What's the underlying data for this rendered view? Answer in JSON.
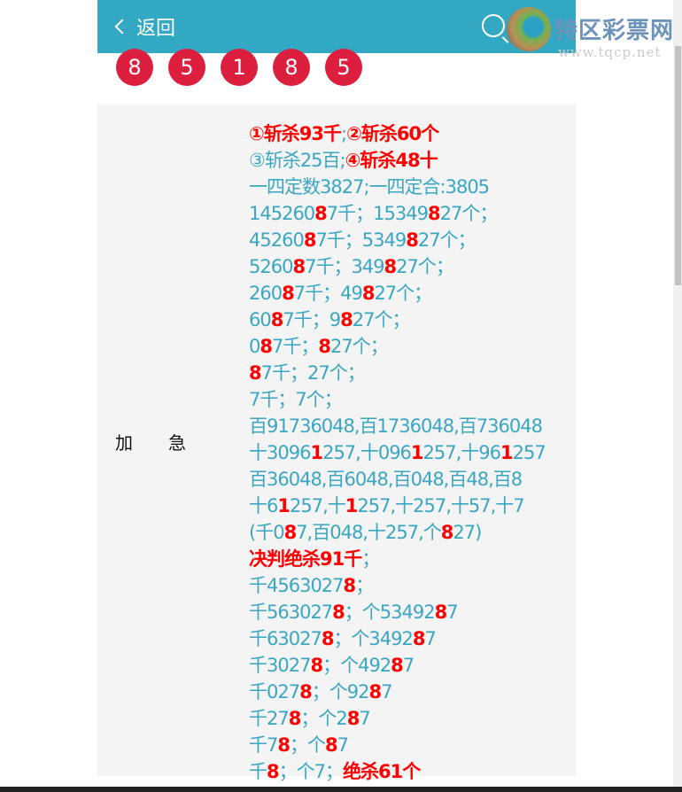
{
  "header": {
    "back_label": "返回",
    "logo_text": "特区彩票网",
    "logo_url": "www.tqcp.net",
    "bg_color": "#33a8c2"
  },
  "balls": [
    "8",
    "5",
    "1",
    "8",
    "5"
  ],
  "ball_color": "#dc1f3f",
  "row_label": "加　　急",
  "lines": [
    [
      [
        "①斩杀93千",
        1
      ],
      [
        ";",
        0
      ],
      [
        "②斩杀60个",
        1
      ]
    ],
    [
      [
        "③斩杀25百;",
        0
      ],
      [
        "④斩杀48十",
        1
      ]
    ],
    [
      [
        "一四定数3827;一四定合:3805",
        0
      ]
    ],
    [
      [
        "145260",
        0
      ],
      [
        "8",
        1
      ],
      [
        "7千；15349",
        0
      ],
      [
        "8",
        1
      ],
      [
        "27个；",
        0
      ]
    ],
    [
      [
        "45260",
        0
      ],
      [
        "8",
        1
      ],
      [
        "7千；5349",
        0
      ],
      [
        "8",
        1
      ],
      [
        "27个；",
        0
      ]
    ],
    [
      [
        "5260",
        0
      ],
      [
        "8",
        1
      ],
      [
        "7千；349",
        0
      ],
      [
        "8",
        1
      ],
      [
        "27个；",
        0
      ]
    ],
    [
      [
        "260",
        0
      ],
      [
        "8",
        1
      ],
      [
        "7千；49",
        0
      ],
      [
        "8",
        1
      ],
      [
        "27个；",
        0
      ]
    ],
    [
      [
        "60",
        0
      ],
      [
        "8",
        1
      ],
      [
        "7千；9",
        0
      ],
      [
        "8",
        1
      ],
      [
        "27个；",
        0
      ]
    ],
    [
      [
        "0",
        0
      ],
      [
        "8",
        1
      ],
      [
        "7千；",
        0
      ],
      [
        "8",
        1
      ],
      [
        "27个；",
        0
      ]
    ],
    [
      [
        "8",
        1
      ],
      [
        "7千；27个；",
        0
      ]
    ],
    [
      [
        "7千；7个；",
        0
      ]
    ],
    [
      [
        "百91736048,百1736048,百736048",
        0
      ]
    ],
    [
      [
        "十3096",
        0
      ],
      [
        "1",
        1
      ],
      [
        "257,十096",
        0
      ],
      [
        "1",
        1
      ],
      [
        "257,十96",
        0
      ],
      [
        "1",
        1
      ],
      [
        "257",
        0
      ]
    ],
    [
      [
        "百36048,百6048,百048,百48,百8",
        0
      ]
    ],
    [
      [
        "十6",
        0
      ],
      [
        "1",
        1
      ],
      [
        "257,十",
        0
      ],
      [
        "1",
        1
      ],
      [
        "257,十257,十57,十7",
        0
      ]
    ],
    [
      [
        "(千0",
        0
      ],
      [
        "8",
        1
      ],
      [
        "7,百048,十257,个",
        0
      ],
      [
        "8",
        1
      ],
      [
        "27)",
        0
      ]
    ],
    [
      [
        "决判绝杀91千",
        1
      ],
      [
        "；",
        0
      ]
    ],
    [
      [
        "千4563027",
        0
      ],
      [
        "8",
        1
      ],
      [
        "；",
        0
      ]
    ],
    [
      [
        "千563027",
        0
      ],
      [
        "8",
        1
      ],
      [
        "；个53492",
        0
      ],
      [
        "8",
        1
      ],
      [
        "7",
        0
      ]
    ],
    [
      [
        "千63027",
        0
      ],
      [
        "8",
        1
      ],
      [
        "；个3492",
        0
      ],
      [
        "8",
        1
      ],
      [
        "7",
        0
      ]
    ],
    [
      [
        "千3027",
        0
      ],
      [
        "8",
        1
      ],
      [
        "；个492",
        0
      ],
      [
        "8",
        1
      ],
      [
        "7",
        0
      ]
    ],
    [
      [
        "千027",
        0
      ],
      [
        "8",
        1
      ],
      [
        "；个92",
        0
      ],
      [
        "8",
        1
      ],
      [
        "7",
        0
      ]
    ],
    [
      [
        "千27",
        0
      ],
      [
        "8",
        1
      ],
      [
        "；个2",
        0
      ],
      [
        "8",
        1
      ],
      [
        "7",
        0
      ]
    ],
    [
      [
        "千7",
        0
      ],
      [
        "8",
        1
      ],
      [
        "；个",
        0
      ],
      [
        "8",
        1
      ],
      [
        "7",
        0
      ]
    ],
    [
      [
        "千",
        0
      ],
      [
        "8",
        1
      ],
      [
        "；个7；",
        0
      ],
      [
        "绝杀61个",
        1
      ]
    ]
  ]
}
